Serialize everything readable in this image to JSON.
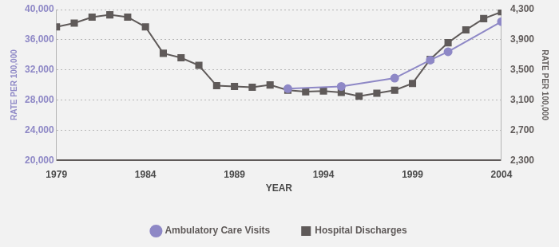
{
  "chart_data": {
    "type": "line",
    "x_label": "YEAR",
    "y_label": "RATE PER 100,000",
    "y2_label": "RATE PER 100,000",
    "x": [
      1979,
      1980,
      1981,
      1982,
      1983,
      1984,
      1985,
      1986,
      1987,
      1988,
      1989,
      1990,
      1991,
      1992,
      1993,
      1994,
      1995,
      1996,
      1997,
      1998,
      1999,
      2000,
      2001,
      2002,
      2003,
      2004
    ],
    "xlim": [
      1979,
      2004
    ],
    "xticks": [
      1979,
      1984,
      1989,
      1994,
      1999,
      2004
    ],
    "ylim": [
      20000,
      40000
    ],
    "yticks": [
      {
        "value": 20000,
        "label": "20,000"
      },
      {
        "value": 24000,
        "label": "24,000"
      },
      {
        "value": 28000,
        "label": "28,000"
      },
      {
        "value": 32000,
        "label": "32,000"
      },
      {
        "value": 36000,
        "label": "36,000"
      },
      {
        "value": 40000,
        "label": "40,000"
      }
    ],
    "y2lim": [
      2300,
      4300
    ],
    "y2ticks": [
      {
        "value": 2300,
        "label": "2,300"
      },
      {
        "value": 2700,
        "label": "2,700"
      },
      {
        "value": 3100,
        "label": "3,100"
      },
      {
        "value": 3500,
        "label": "3,500"
      },
      {
        "value": 3900,
        "label": "3,900"
      },
      {
        "value": 4300,
        "label": "4,300"
      }
    ],
    "grid": true,
    "legend": "bottom",
    "series": [
      {
        "name": "Ambulatory Care Visits",
        "color": "#8e88c6",
        "marker": "circle",
        "line_style": "solid",
        "axis": "y",
        "values": [
          null,
          null,
          null,
          null,
          null,
          null,
          null,
          null,
          null,
          null,
          null,
          null,
          null,
          29500,
          null,
          null,
          29800,
          null,
          null,
          30900,
          null,
          33300,
          34400,
          null,
          null,
          38400
        ]
      },
      {
        "name": "Hospital Discharges",
        "color": "#5f5a59",
        "marker": "square",
        "line_style": "solid",
        "axis": "y2",
        "values": [
          4070,
          4120,
          4200,
          4230,
          4200,
          4070,
          3720,
          3660,
          3560,
          3290,
          3280,
          3270,
          3300,
          3230,
          3210,
          3220,
          3200,
          3150,
          3190,
          3230,
          3320,
          3640,
          3860,
          4030,
          4180,
          4270
        ]
      }
    ]
  }
}
